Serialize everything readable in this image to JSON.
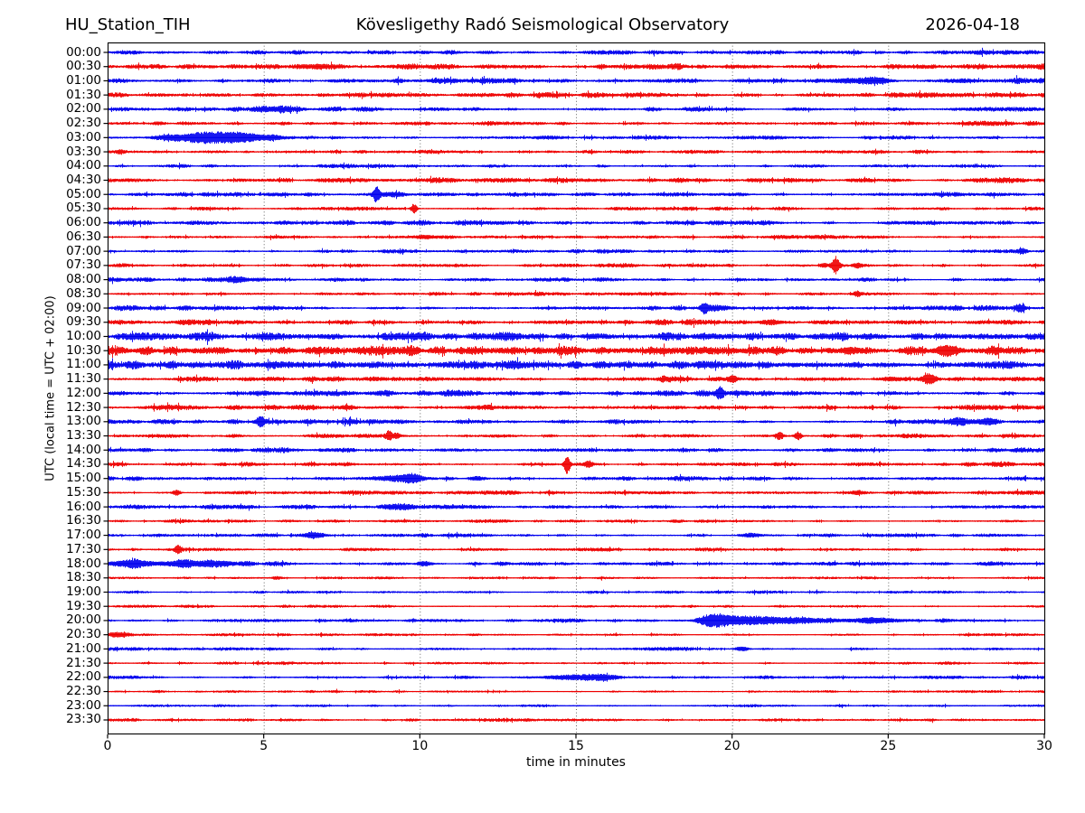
{
  "header": {
    "station": "HU_Station_TIH",
    "observatory": "Kövesligethy Radó Seismological Observatory",
    "date": "2026-04-18"
  },
  "yaxis": {
    "label": "UTC (local time = UTC + 02:00)"
  },
  "xaxis": {
    "label": "time in minutes",
    "ticks": [
      0,
      5,
      10,
      15,
      20,
      25,
      30
    ],
    "range": [
      0,
      30
    ],
    "gridlines": [
      5,
      10,
      15,
      20,
      25
    ]
  },
  "colors": {
    "trace_blue": "#0000ee",
    "trace_red": "#ee0000",
    "grid": "#555555",
    "axis": "#000000",
    "background": "#ffffff"
  },
  "chart_data": {
    "type": "line",
    "subtype": "helicorder-dayplot",
    "title": "Kövesligethy Radó Seismological Observatory",
    "station": "HU_Station_TIH",
    "date": "2026-04-18",
    "xlabel": "time in minutes",
    "ylabel": "UTC (local time = UTC + 02:00)",
    "xlim": [
      0,
      30
    ],
    "minutes_per_row": 30,
    "grid": "vertical-dotted",
    "description": "48 half-hour seismogram traces, alternating blue (hh:00) and red (hh:30). noise_amp is background noise half-amplitude in px; events are transients: t = minutes, a = peak half-amplitude px, w = gaussian width in minutes.",
    "rows": [
      {
        "label": "00:00",
        "pen": "blue",
        "noise_amp": 2.1,
        "events": []
      },
      {
        "label": "00:30",
        "pen": "red",
        "noise_amp": 2.4,
        "events": [
          {
            "t": 6.6,
            "a": 1.6,
            "w": 0.35
          },
          {
            "t": 15.8,
            "a": 2.2,
            "w": 0.12
          }
        ]
      },
      {
        "label": "01:00",
        "pen": "blue",
        "noise_amp": 2.1,
        "events": [
          {
            "t": 23.9,
            "a": 2.0,
            "w": 0.45
          },
          {
            "t": 24.7,
            "a": 2.6,
            "w": 0.25
          }
        ]
      },
      {
        "label": "01:30",
        "pen": "red",
        "noise_amp": 2.0,
        "events": []
      },
      {
        "label": "02:00",
        "pen": "blue",
        "noise_amp": 1.9,
        "events": [
          {
            "t": 5.3,
            "a": 1.5,
            "w": 0.4
          }
        ]
      },
      {
        "label": "02:30",
        "pen": "red",
        "noise_amp": 1.8,
        "events": []
      },
      {
        "label": "03:00",
        "pen": "blue",
        "noise_amp": 1.7,
        "events": [
          {
            "t": 2.6,
            "a": 2.5,
            "w": 0.7
          },
          {
            "t": 3.9,
            "a": 4.5,
            "w": 1.0
          }
        ]
      },
      {
        "label": "03:30",
        "pen": "red",
        "noise_amp": 1.4,
        "events": [
          {
            "t": 0.4,
            "a": 1.6,
            "w": 0.1
          }
        ]
      },
      {
        "label": "04:00",
        "pen": "blue",
        "noise_amp": 1.4,
        "events": []
      },
      {
        "label": "04:30",
        "pen": "red",
        "noise_amp": 1.9,
        "events": []
      },
      {
        "label": "05:00",
        "pen": "blue",
        "noise_amp": 1.7,
        "events": [
          {
            "t": 8.6,
            "a": 7.5,
            "w": 0.07
          },
          {
            "t": 9.0,
            "a": 2.0,
            "w": 0.3
          }
        ]
      },
      {
        "label": "05:30",
        "pen": "red",
        "noise_amp": 1.5,
        "events": [
          {
            "t": 9.8,
            "a": 5.5,
            "w": 0.07
          }
        ]
      },
      {
        "label": "06:00",
        "pen": "blue",
        "noise_amp": 1.9,
        "events": []
      },
      {
        "label": "06:30",
        "pen": "red",
        "noise_amp": 1.5,
        "events": [
          {
            "t": 10.2,
            "a": 1.4,
            "w": 0.4
          }
        ]
      },
      {
        "label": "07:00",
        "pen": "blue",
        "noise_amp": 1.4,
        "events": [
          {
            "t": 29.3,
            "a": 1.8,
            "w": 0.1
          }
        ]
      },
      {
        "label": "07:30",
        "pen": "red",
        "noise_amp": 1.6,
        "events": [
          {
            "t": 22.9,
            "a": 2.0,
            "w": 0.1
          },
          {
            "t": 23.3,
            "a": 8.5,
            "w": 0.09
          },
          {
            "t": 24.0,
            "a": 2.6,
            "w": 0.12
          }
        ]
      },
      {
        "label": "08:00",
        "pen": "blue",
        "noise_amp": 1.8,
        "events": [
          {
            "t": 4.2,
            "a": 2.0,
            "w": 0.3
          }
        ]
      },
      {
        "label": "08:30",
        "pen": "red",
        "noise_amp": 1.5,
        "events": [
          {
            "t": 24.0,
            "a": 2.6,
            "w": 0.09
          }
        ]
      },
      {
        "label": "09:00",
        "pen": "blue",
        "noise_amp": 1.8,
        "events": [
          {
            "t": 19.1,
            "a": 5.5,
            "w": 0.08
          },
          {
            "t": 19.4,
            "a": 2.0,
            "w": 0.3
          },
          {
            "t": 29.2,
            "a": 2.6,
            "w": 0.09
          }
        ]
      },
      {
        "label": "09:30",
        "pen": "red",
        "noise_amp": 2.1,
        "events": [
          {
            "t": 21.3,
            "a": 2.0,
            "w": 0.2
          }
        ]
      },
      {
        "label": "10:00",
        "pen": "blue",
        "noise_amp": 3.3,
        "events": []
      },
      {
        "label": "10:30",
        "pen": "red",
        "noise_amp": 3.3,
        "events": [
          {
            "t": 23.8,
            "a": 3.0,
            "w": 0.2
          },
          {
            "t": 26.9,
            "a": 4.0,
            "w": 0.25
          }
        ]
      },
      {
        "label": "11:00",
        "pen": "blue",
        "noise_amp": 3.3,
        "events": []
      },
      {
        "label": "11:30",
        "pen": "red",
        "noise_amp": 2.2,
        "events": [
          {
            "t": 20.0,
            "a": 3.5,
            "w": 0.1
          },
          {
            "t": 25.1,
            "a": 2.0,
            "w": 0.2
          },
          {
            "t": 26.3,
            "a": 5.0,
            "w": 0.16
          }
        ]
      },
      {
        "label": "12:00",
        "pen": "blue",
        "noise_amp": 2.2,
        "events": [
          {
            "t": 19.6,
            "a": 5.5,
            "w": 0.09
          }
        ]
      },
      {
        "label": "12:30",
        "pen": "red",
        "noise_amp": 1.9,
        "events": []
      },
      {
        "label": "13:00",
        "pen": "blue",
        "noise_amp": 2.0,
        "events": [
          {
            "t": 4.9,
            "a": 4.5,
            "w": 0.09
          },
          {
            "t": 27.3,
            "a": 2.6,
            "w": 0.25
          },
          {
            "t": 28.1,
            "a": 2.4,
            "w": 0.2
          }
        ]
      },
      {
        "label": "13:30",
        "pen": "red",
        "noise_amp": 1.7,
        "events": [
          {
            "t": 9.0,
            "a": 5.0,
            "w": 0.07
          },
          {
            "t": 9.25,
            "a": 3.0,
            "w": 0.08
          },
          {
            "t": 21.5,
            "a": 4.0,
            "w": 0.08
          },
          {
            "t": 22.1,
            "a": 4.5,
            "w": 0.08
          }
        ]
      },
      {
        "label": "14:00",
        "pen": "blue",
        "noise_amp": 1.9,
        "events": []
      },
      {
        "label": "14:30",
        "pen": "red",
        "noise_amp": 1.7,
        "events": [
          {
            "t": 14.7,
            "a": 10.5,
            "w": 0.07
          },
          {
            "t": 15.4,
            "a": 3.5,
            "w": 0.09
          }
        ]
      },
      {
        "label": "15:00",
        "pen": "blue",
        "noise_amp": 1.9,
        "events": [
          {
            "t": 9.3,
            "a": 3.0,
            "w": 0.45
          },
          {
            "t": 9.8,
            "a": 3.0,
            "w": 0.2
          },
          {
            "t": 11.8,
            "a": 2.2,
            "w": 0.2
          }
        ]
      },
      {
        "label": "15:30",
        "pen": "red",
        "noise_amp": 1.5,
        "events": [
          {
            "t": 2.2,
            "a": 2.6,
            "w": 0.1
          },
          {
            "t": 24.0,
            "a": 2.0,
            "w": 0.15
          }
        ]
      },
      {
        "label": "16:00",
        "pen": "blue",
        "noise_amp": 1.7,
        "events": [
          {
            "t": 9.4,
            "a": 2.4,
            "w": 0.3
          }
        ]
      },
      {
        "label": "16:30",
        "pen": "red",
        "noise_amp": 1.3,
        "events": []
      },
      {
        "label": "17:00",
        "pen": "blue",
        "noise_amp": 1.5,
        "events": [
          {
            "t": 6.6,
            "a": 3.5,
            "w": 0.22
          },
          {
            "t": 20.6,
            "a": 1.8,
            "w": 0.2
          }
        ]
      },
      {
        "label": "17:30",
        "pen": "red",
        "noise_amp": 1.4,
        "events": [
          {
            "t": 2.25,
            "a": 4.0,
            "w": 0.08
          }
        ]
      },
      {
        "label": "18:00",
        "pen": "blue",
        "noise_amp": 1.8,
        "events": [
          {
            "t": 0.8,
            "a": 3.0,
            "w": 0.55
          },
          {
            "t": 2.4,
            "a": 3.0,
            "w": 0.45
          },
          {
            "t": 3.6,
            "a": 2.5,
            "w": 0.4
          },
          {
            "t": 10.1,
            "a": 2.0,
            "w": 0.15
          }
        ]
      },
      {
        "label": "18:30",
        "pen": "red",
        "noise_amp": 1.1,
        "events": [
          {
            "t": 5.4,
            "a": 1.5,
            "w": 0.1
          }
        ]
      },
      {
        "label": "19:00",
        "pen": "blue",
        "noise_amp": 1.1,
        "events": []
      },
      {
        "label": "19:30",
        "pen": "red",
        "noise_amp": 1.1,
        "events": []
      },
      {
        "label": "20:00",
        "pen": "blue",
        "noise_amp": 1.6,
        "events": [
          {
            "t": 19.4,
            "a": 5.0,
            "w": 0.35
          },
          {
            "t": 20.3,
            "a": 3.5,
            "w": 0.7
          },
          {
            "t": 22.0,
            "a": 2.4,
            "w": 1.2
          },
          {
            "t": 24.6,
            "a": 2.2,
            "w": 0.5
          }
        ]
      },
      {
        "label": "20:30",
        "pen": "red",
        "noise_amp": 1.2,
        "events": [
          {
            "t": 0.3,
            "a": 2.6,
            "w": 0.25
          }
        ]
      },
      {
        "label": "21:00",
        "pen": "blue",
        "noise_amp": 1.3,
        "events": [
          {
            "t": 20.3,
            "a": 2.0,
            "w": 0.15
          }
        ]
      },
      {
        "label": "21:30",
        "pen": "red",
        "noise_amp": 1.2,
        "events": []
      },
      {
        "label": "22:00",
        "pen": "blue",
        "noise_amp": 1.4,
        "events": [
          {
            "t": 14.8,
            "a": 2.6,
            "w": 0.6
          },
          {
            "t": 15.9,
            "a": 2.3,
            "w": 0.35
          }
        ]
      },
      {
        "label": "22:30",
        "pen": "red",
        "noise_amp": 1.1,
        "events": []
      },
      {
        "label": "23:00",
        "pen": "blue",
        "noise_amp": 1.0,
        "events": []
      },
      {
        "label": "23:30",
        "pen": "red",
        "noise_amp": 1.2,
        "events": []
      }
    ]
  }
}
